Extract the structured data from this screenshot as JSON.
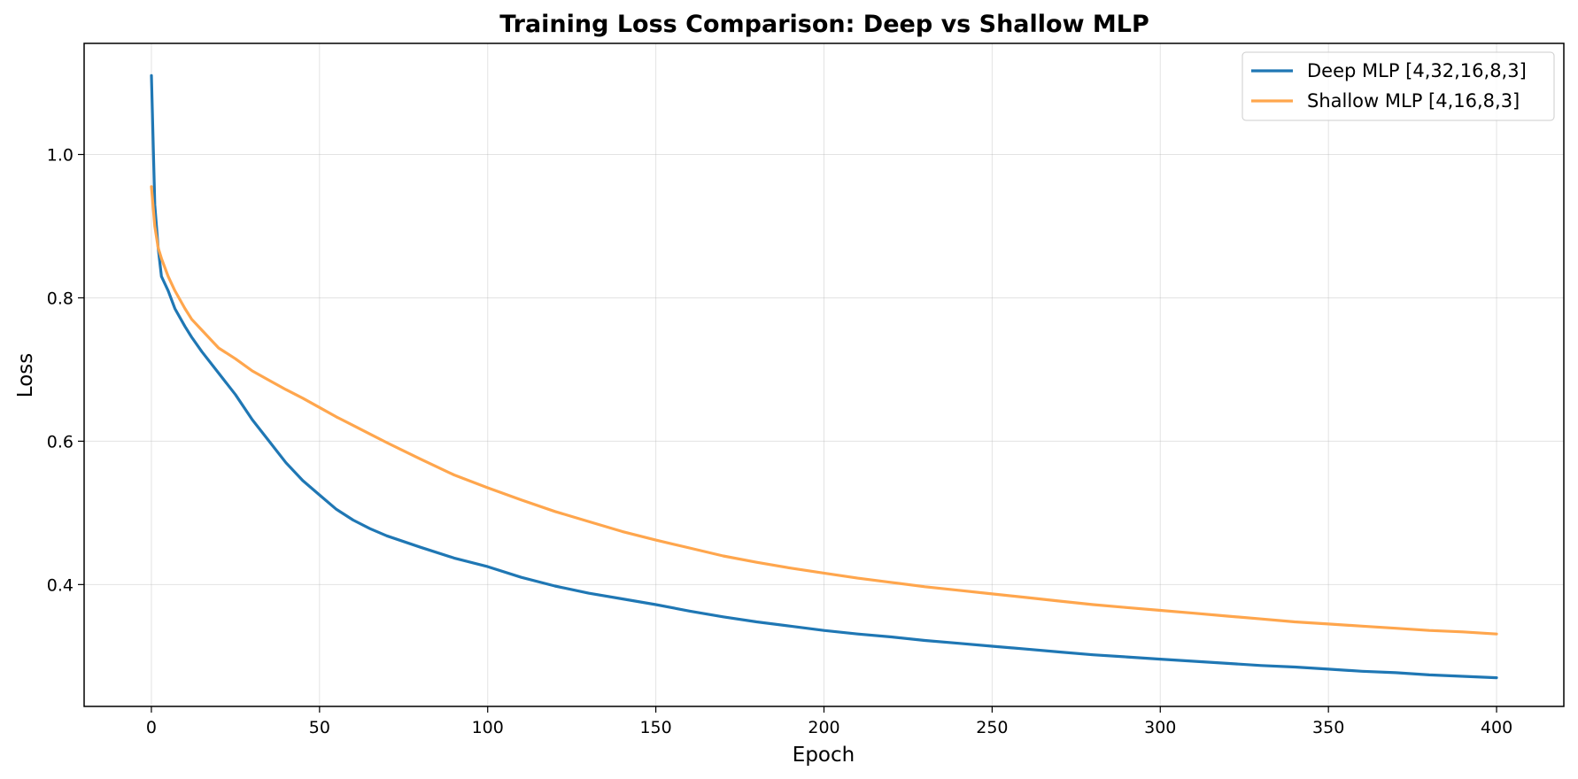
{
  "chart_data": {
    "type": "line",
    "title": "Training Loss Comparison: Deep vs Shallow MLP",
    "xlabel": "Epoch",
    "ylabel": "Loss",
    "xlim": [
      -20,
      420
    ],
    "ylim": [
      0.23,
      1.155
    ],
    "xticks": [
      0,
      50,
      100,
      150,
      200,
      250,
      300,
      350,
      400
    ],
    "yticks": [
      0.4,
      0.6,
      0.8,
      1.0
    ],
    "grid": true,
    "legend_position": "top-right",
    "series": [
      {
        "name": "Deep MLP [4,32,16,8,3]",
        "color": "#1f77b4",
        "x": [
          0,
          1,
          2,
          3,
          5,
          7,
          10,
          12,
          15,
          20,
          25,
          30,
          35,
          40,
          45,
          50,
          55,
          60,
          65,
          70,
          80,
          90,
          100,
          110,
          120,
          130,
          140,
          150,
          160,
          170,
          180,
          190,
          200,
          210,
          220,
          230,
          240,
          250,
          260,
          270,
          280,
          290,
          300,
          310,
          320,
          330,
          340,
          350,
          360,
          370,
          380,
          390,
          400
        ],
        "y": [
          1.11,
          0.93,
          0.87,
          0.83,
          0.81,
          0.785,
          0.76,
          0.745,
          0.725,
          0.695,
          0.665,
          0.63,
          0.6,
          0.57,
          0.545,
          0.525,
          0.505,
          0.49,
          0.478,
          0.468,
          0.452,
          0.437,
          0.425,
          0.41,
          0.398,
          0.388,
          0.38,
          0.372,
          0.363,
          0.355,
          0.348,
          0.342,
          0.336,
          0.331,
          0.327,
          0.322,
          0.318,
          0.314,
          0.31,
          0.306,
          0.302,
          0.299,
          0.296,
          0.293,
          0.29,
          0.287,
          0.285,
          0.282,
          0.279,
          0.277,
          0.274,
          0.272,
          0.27
        ]
      },
      {
        "name": "Shallow MLP [4,16,8,3]",
        "color": "#ffa64d",
        "x": [
          0,
          1,
          2,
          3,
          5,
          7,
          10,
          12,
          15,
          20,
          25,
          30,
          35,
          40,
          45,
          50,
          55,
          60,
          65,
          70,
          80,
          90,
          100,
          110,
          120,
          130,
          140,
          150,
          160,
          170,
          180,
          190,
          200,
          210,
          220,
          230,
          240,
          250,
          260,
          270,
          280,
          290,
          300,
          310,
          320,
          330,
          340,
          350,
          360,
          370,
          380,
          390,
          400
        ],
        "y": [
          0.955,
          0.9,
          0.87,
          0.855,
          0.83,
          0.81,
          0.785,
          0.77,
          0.755,
          0.73,
          0.715,
          0.698,
          0.685,
          0.672,
          0.66,
          0.647,
          0.634,
          0.622,
          0.61,
          0.598,
          0.575,
          0.553,
          0.535,
          0.518,
          0.502,
          0.488,
          0.474,
          0.462,
          0.451,
          0.44,
          0.431,
          0.423,
          0.416,
          0.409,
          0.403,
          0.397,
          0.392,
          0.387,
          0.382,
          0.377,
          0.372,
          0.368,
          0.364,
          0.36,
          0.356,
          0.352,
          0.348,
          0.345,
          0.342,
          0.339,
          0.336,
          0.334,
          0.331
        ]
      }
    ]
  }
}
